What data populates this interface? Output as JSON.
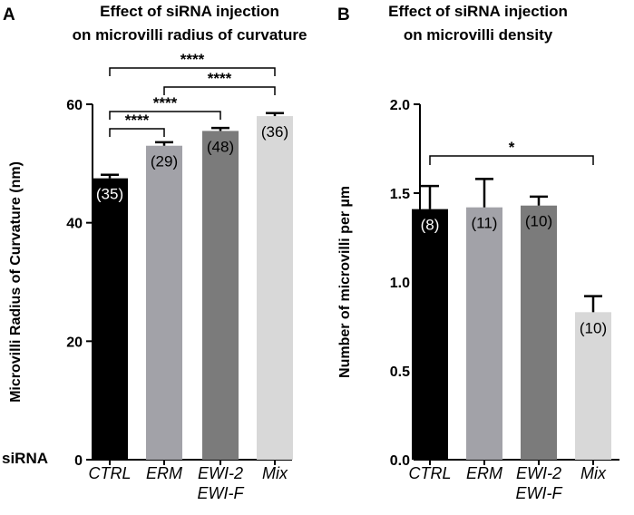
{
  "panels": {
    "a": "A",
    "b": "B"
  },
  "xrow_label": "siRNA",
  "chart_data": [
    {
      "type": "bar",
      "title": [
        "Effect of siRNA injection",
        "on microvilli radius of curvature"
      ],
      "ylabel": "Microvilli Radius of Curvature (nm)",
      "ylim": [
        0,
        60
      ],
      "yticks": [
        0,
        20,
        40,
        60
      ],
      "ytick_labels": [
        "0",
        "20",
        "40",
        "60"
      ],
      "categories": [
        "CTRL",
        "ERM",
        "EWI-2",
        "Mix"
      ],
      "category_sublabels": [
        "",
        "",
        "EWI-F",
        ""
      ],
      "values": [
        47.5,
        53,
        55.5,
        58
      ],
      "errors": [
        0.6,
        0.6,
        0.5,
        0.5
      ],
      "n_labels": [
        "(35)",
        "(29)",
        "(48)",
        "(36)"
      ],
      "colors": [
        "#000000",
        "#a2a2a8",
        "#7b7b7b",
        "#d8d8d8"
      ],
      "n_label_colors": [
        "#ffffff",
        "#000000",
        "#000000",
        "#000000"
      ],
      "significance": [
        {
          "from": 0,
          "to": 1,
          "label": "****"
        },
        {
          "from": 0,
          "to": 2,
          "label": "****"
        },
        {
          "from": 1,
          "to": 3,
          "label": "****"
        },
        {
          "from": 0,
          "to": 3,
          "label": "****"
        }
      ]
    },
    {
      "type": "bar",
      "title": [
        "Effect of siRNA injection",
        "on microvilli density"
      ],
      "ylabel": "Number of microvilli per µm",
      "ylim": [
        0,
        2
      ],
      "yticks": [
        0,
        0.5,
        1,
        1.5,
        2
      ],
      "ytick_labels": [
        "0.0",
        "0.5",
        "1.0",
        "1.5",
        "2.0"
      ],
      "categories": [
        "CTRL",
        "ERM",
        "EWI-2",
        "Mix"
      ],
      "category_sublabels": [
        "",
        "",
        "EWI-F",
        ""
      ],
      "values": [
        1.41,
        1.42,
        1.43,
        0.83
      ],
      "errors": [
        0.13,
        0.16,
        0.05,
        0.09
      ],
      "n_labels": [
        "(8)",
        "(11)",
        "(10)",
        "(10)"
      ],
      "colors": [
        "#000000",
        "#a2a2a8",
        "#7b7b7b",
        "#d8d8d8"
      ],
      "n_label_colors": [
        "#ffffff",
        "#000000",
        "#000000",
        "#000000"
      ],
      "significance": [
        {
          "from": 0,
          "to": 3,
          "label": "*"
        }
      ]
    }
  ]
}
